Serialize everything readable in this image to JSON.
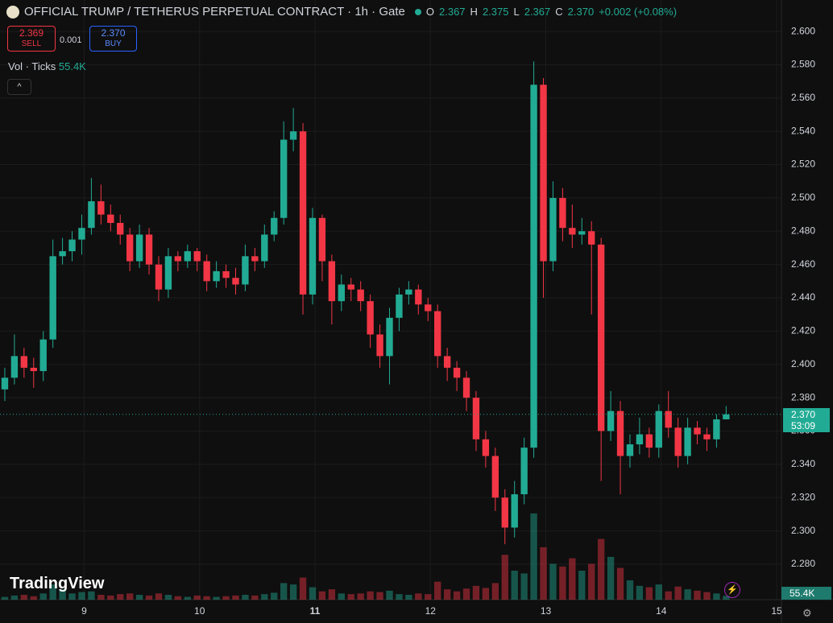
{
  "ui": {
    "title": "OFFICIAL TRUMP / TETHERUS PERPETUAL CONTRACT · 1h · Gate",
    "o_label": "O",
    "o": "2.367",
    "h_label": "H",
    "h": "2.375",
    "l_label": "L",
    "l": "2.367",
    "c_label": "C",
    "c": "2.370",
    "change": "+0.002 (+0.08%)",
    "sell_price": "2.369",
    "sell": "SELL",
    "spread": "0.001",
    "buy_price": "2.370",
    "buy": "BUY",
    "vol_label": "Vol · Ticks",
    "vol_value": "55.4K",
    "price_tag": "2.370",
    "countdown": "53:09",
    "vol_tag": "55.4K",
    "brand": "TradingView"
  },
  "chart_data": {
    "type": "candlestick",
    "title": "OFFICIAL TRUMP / TETHERUS PERPETUAL CONTRACT · 1h · Gate",
    "up_color": "#22ab94",
    "down_color": "#f23645",
    "open": [
      2.385,
      2.392,
      2.405,
      2.398,
      2.396,
      2.415,
      2.465,
      2.468,
      2.475,
      2.482,
      2.498,
      2.49,
      2.485,
      2.478,
      2.462,
      2.478,
      2.46,
      2.445,
      2.465,
      2.462,
      2.468,
      2.462,
      2.45,
      2.456,
      2.452,
      2.448,
      2.465,
      2.462,
      2.478,
      2.488,
      2.535,
      2.54,
      2.442,
      2.488,
      2.462,
      2.438,
      2.448,
      2.445,
      2.438,
      2.418,
      2.405,
      2.428,
      2.442,
      2.445,
      2.436,
      2.432,
      2.405,
      2.398,
      2.392,
      2.38,
      2.355,
      2.345,
      2.32,
      2.302,
      2.322,
      2.35,
      2.568,
      2.462,
      2.5,
      2.482,
      2.478,
      2.48,
      2.472,
      2.36,
      2.372,
      2.345,
      2.352,
      2.358,
      2.35,
      2.372,
      2.362,
      2.345,
      2.362,
      2.358,
      2.355,
      2.367
    ],
    "high": [
      2.398,
      2.418,
      2.41,
      2.404,
      2.42,
      2.475,
      2.476,
      2.48,
      2.49,
      2.512,
      2.508,
      2.496,
      2.49,
      2.482,
      2.484,
      2.482,
      2.465,
      2.47,
      2.468,
      2.472,
      2.47,
      2.466,
      2.462,
      2.46,
      2.458,
      2.472,
      2.47,
      2.484,
      2.492,
      2.546,
      2.554,
      2.545,
      2.494,
      2.49,
      2.466,
      2.454,
      2.452,
      2.45,
      2.442,
      2.424,
      2.434,
      2.446,
      2.45,
      2.448,
      2.44,
      2.436,
      2.41,
      2.402,
      2.396,
      2.384,
      2.36,
      2.35,
      2.325,
      2.33,
      2.356,
      2.582,
      2.572,
      2.51,
      2.506,
      2.496,
      2.488,
      2.486,
      2.476,
      2.384,
      2.378,
      2.358,
      2.368,
      2.362,
      2.376,
      2.384,
      2.368,
      2.368,
      2.366,
      2.362,
      2.37,
      2.375
    ],
    "low": [
      2.378,
      2.388,
      2.392,
      2.386,
      2.39,
      2.41,
      2.46,
      2.462,
      2.466,
      2.478,
      2.484,
      2.48,
      2.472,
      2.456,
      2.458,
      2.454,
      2.438,
      2.44,
      2.456,
      2.458,
      2.456,
      2.444,
      2.446,
      2.446,
      2.442,
      2.444,
      2.456,
      2.458,
      2.474,
      2.484,
      2.528,
      2.43,
      2.436,
      2.45,
      2.424,
      2.432,
      2.438,
      2.432,
      2.41,
      2.398,
      2.388,
      2.42,
      2.436,
      2.43,
      2.426,
      2.398,
      2.39,
      2.384,
      2.372,
      2.348,
      2.338,
      2.312,
      2.292,
      2.296,
      2.316,
      2.344,
      2.44,
      2.456,
      2.474,
      2.47,
      2.472,
      2.43,
      2.33,
      2.354,
      2.322,
      2.338,
      2.346,
      2.344,
      2.344,
      2.356,
      2.338,
      2.34,
      2.352,
      2.348,
      2.35,
      2.367
    ],
    "close": [
      2.392,
      2.405,
      2.398,
      2.396,
      2.415,
      2.465,
      2.468,
      2.475,
      2.482,
      2.498,
      2.49,
      2.485,
      2.478,
      2.462,
      2.478,
      2.46,
      2.445,
      2.465,
      2.462,
      2.468,
      2.462,
      2.45,
      2.456,
      2.452,
      2.448,
      2.465,
      2.462,
      2.478,
      2.488,
      2.535,
      2.54,
      2.442,
      2.488,
      2.462,
      2.438,
      2.448,
      2.445,
      2.438,
      2.418,
      2.405,
      2.428,
      2.442,
      2.445,
      2.436,
      2.432,
      2.405,
      2.398,
      2.392,
      2.38,
      2.355,
      2.345,
      2.32,
      2.302,
      2.322,
      2.35,
      2.568,
      2.462,
      2.5,
      2.482,
      2.478,
      2.48,
      2.472,
      2.36,
      2.372,
      2.345,
      2.352,
      2.358,
      2.35,
      2.372,
      2.362,
      2.345,
      2.362,
      2.358,
      2.355,
      2.367,
      2.37
    ],
    "volume": [
      40,
      60,
      70,
      50,
      90,
      220,
      150,
      90,
      110,
      120,
      70,
      60,
      80,
      90,
      70,
      60,
      90,
      70,
      50,
      40,
      60,
      50,
      40,
      50,
      60,
      70,
      60,
      80,
      100,
      240,
      220,
      320,
      180,
      120,
      150,
      90,
      80,
      90,
      120,
      110,
      130,
      80,
      70,
      90,
      80,
      260,
      150,
      120,
      160,
      200,
      170,
      240,
      650,
      420,
      380,
      1250,
      760,
      520,
      480,
      600,
      420,
      520,
      880,
      620,
      460,
      280,
      200,
      180,
      220,
      120,
      190,
      150,
      130,
      110,
      90,
      55.4
    ],
    "vlim": [
      0,
      1400
    ],
    "xlim": [
      -0.5,
      80.75
    ],
    "xticks": [
      {
        "value": 8.25,
        "label": "9"
      },
      {
        "value": 20.25,
        "label": "10"
      },
      {
        "value": 32.25,
        "label": "11"
      },
      {
        "value": 44.25,
        "label": "12"
      },
      {
        "value": 56.25,
        "label": "13"
      },
      {
        "value": 68.25,
        "label": "14"
      },
      {
        "value": 80.25,
        "label": "15"
      }
    ],
    "ylim": [
      2.2587,
      2.6189
    ],
    "yticks": [
      {
        "value": 2.28,
        "label": "2.280"
      },
      {
        "value": 2.3,
        "label": "2.300"
      },
      {
        "value": 2.32,
        "label": "2.320"
      },
      {
        "value": 2.34,
        "label": "2.340"
      },
      {
        "value": 2.36,
        "label": "2.360"
      },
      {
        "value": 2.38,
        "label": "2.380"
      },
      {
        "value": 2.4,
        "label": "2.400"
      },
      {
        "value": 2.42,
        "label": "2.420"
      },
      {
        "value": 2.44,
        "label": "2.440"
      },
      {
        "value": 2.46,
        "label": "2.460"
      },
      {
        "value": 2.48,
        "label": "2.480"
      },
      {
        "value": 2.5,
        "label": "2.500"
      },
      {
        "value": 2.52,
        "label": "2.520"
      },
      {
        "value": 2.54,
        "label": "2.540"
      },
      {
        "value": 2.56,
        "label": "2.560"
      },
      {
        "value": 2.58,
        "label": "2.580"
      },
      {
        "value": 2.6,
        "label": "2.600"
      }
    ],
    "grid": true
  }
}
